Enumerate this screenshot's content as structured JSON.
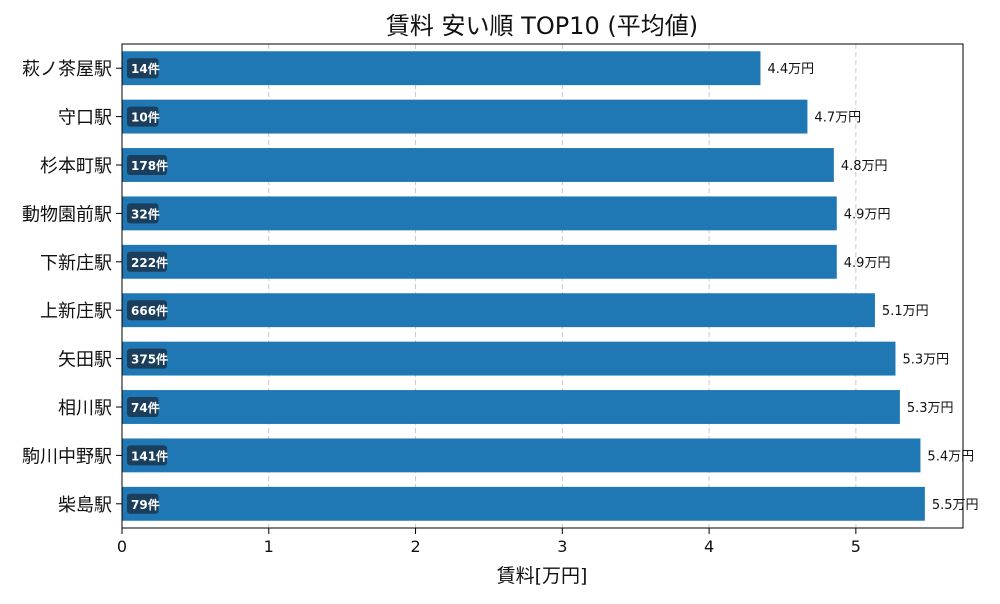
{
  "chart_data": {
    "type": "bar",
    "orientation": "horizontal",
    "title": "賃料 安い順 TOP10 (平均値)",
    "xlabel": "賃料[万円]",
    "ylabel": "",
    "xlim": [
      0,
      5.73
    ],
    "xticks": [
      0,
      1,
      2,
      3,
      4,
      5
    ],
    "grid": "x-dashed",
    "bar_color": "#1f77b4",
    "badge_color": "#1a3e5c",
    "categories": [
      "萩ノ茶屋駅",
      "守口駅",
      "杉本町駅",
      "動物園前駅",
      "下新庄駅",
      "上新庄駅",
      "矢田駅",
      "相川駅",
      "駒川中野駅",
      "柴島駅"
    ],
    "values": [
      4.35,
      4.67,
      4.85,
      4.87,
      4.87,
      5.13,
      5.27,
      5.3,
      5.44,
      5.47
    ],
    "value_labels": [
      "4.4万円",
      "4.7万円",
      "4.8万円",
      "4.9万円",
      "4.9万円",
      "5.1万円",
      "5.3万円",
      "5.3万円",
      "5.4万円",
      "5.5万円"
    ],
    "counts": [
      "14件",
      "10件",
      "178件",
      "32件",
      "222件",
      "666件",
      "375件",
      "74件",
      "141件",
      "79件"
    ]
  }
}
